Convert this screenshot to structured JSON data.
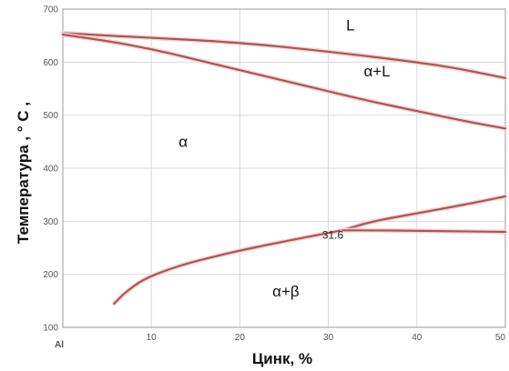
{
  "chart_data": {
    "type": "line",
    "title": "",
    "xlabel": "Цинк, %",
    "ylabel": "Температура , ° C ,",
    "xlim": [
      0,
      50
    ],
    "ylim": [
      100,
      700
    ],
    "x_ticks": [
      {
        "value": 0,
        "label": "Al"
      },
      {
        "value": 10,
        "label": "10"
      },
      {
        "value": 20,
        "label": "20"
      },
      {
        "value": 30,
        "label": "30"
      },
      {
        "value": 40,
        "label": "40"
      },
      {
        "value": 50,
        "label": "50"
      }
    ],
    "y_ticks": [
      100,
      200,
      300,
      400,
      500,
      600,
      700
    ],
    "grid": true,
    "line_color": "#b5524e",
    "series": [
      {
        "x": [
          0,
          5,
          10,
          20,
          30,
          40,
          45,
          50
        ],
        "y": [
          655,
          650,
          646,
          637,
          620,
          600,
          587,
          570
        ]
      },
      {
        "x": [
          0,
          5,
          10,
          15,
          20,
          25,
          30,
          35,
          40,
          45,
          50
        ],
        "y": [
          652,
          640,
          625,
          605,
          585,
          565,
          545,
          525,
          508,
          490,
          475
        ]
      },
      {
        "x": [
          5.8,
          7,
          9,
          12,
          15,
          20,
          25,
          30,
          31.6,
          35,
          40,
          45,
          50
        ],
        "y": [
          145,
          165,
          190,
          210,
          225,
          245,
          262,
          278,
          283,
          300,
          315,
          330,
          347
        ]
      },
      {
        "x": [
          31.6,
          35,
          40,
          45,
          50
        ],
        "y": [
          283,
          283,
          282,
          281,
          280
        ]
      }
    ],
    "region_labels": [
      {
        "text": "L",
        "x": 32.5,
        "y": 660
      },
      {
        "text": "α+L",
        "x": 35.5,
        "y": 573
      },
      {
        "text": "α",
        "x": 13.6,
        "y": 440
      },
      {
        "text": "α+β",
        "x": 25.2,
        "y": 158
      }
    ],
    "annotations": [
      {
        "text": "31.6",
        "x": 30.5,
        "y": 267
      }
    ]
  }
}
